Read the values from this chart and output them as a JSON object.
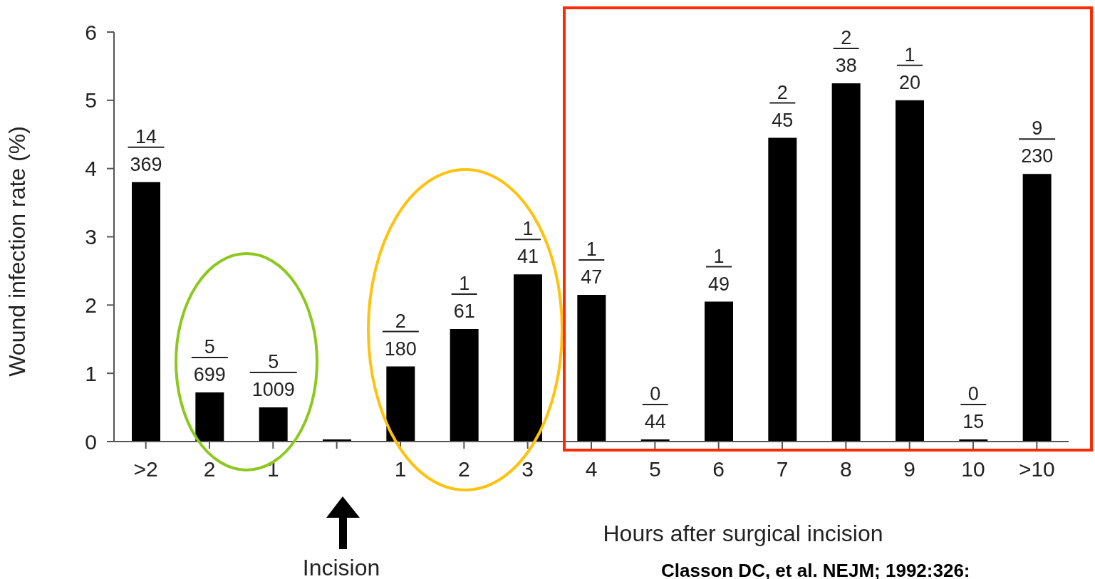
{
  "chart_data": {
    "type": "bar",
    "xlabel": "Hours after surgical incision",
    "ylabel": "Wound infection rate (%)",
    "categories": [
      ">2",
      "2",
      "1",
      null,
      "1",
      "2",
      "3",
      "4",
      "5",
      "6",
      "7",
      "8",
      "9",
      "10",
      ">10"
    ],
    "values": [
      3.8,
      0.72,
      0.5,
      0,
      1.1,
      1.65,
      2.45,
      2.15,
      0,
      2.05,
      4.45,
      5.25,
      5.0,
      0,
      3.92
    ],
    "color": "#000000",
    "ylim": [
      0,
      6
    ],
    "yticks": [
      0,
      1,
      2,
      3,
      4,
      5,
      6
    ],
    "grid": false,
    "legend": false,
    "annotations": [
      "Incision",
      "Classon DC, et al. NEJM; 1992:326:",
      {
        "text": "14\n369",
        "x": ">2",
        "y": 3.8
      },
      {
        "text": "5\n699",
        "x": "2",
        "y": 0.72
      },
      {
        "text": "5\n1009",
        "x": "1",
        "y": 0.5
      },
      "2\n180",
      "1\n61",
      {
        "text": "1\n41",
        "x": "3",
        "y": 2.45
      },
      {
        "text": "1\n47",
        "x": "4",
        "y": 2.15
      },
      {
        "text": "0\n44",
        "x": "5",
        "y": 0
      },
      {
        "text": "1\n49",
        "x": "6",
        "y": 2.05
      },
      {
        "text": "2\n45",
        "x": "7",
        "y": 4.45
      },
      {
        "text": "2\n38",
        "x": "8",
        "y": 5.25
      },
      {
        "text": "1\n20",
        "x": "9",
        "y": 5.0
      },
      {
        "text": "0\n15",
        "x": "10",
        "y": 0
      },
      {
        "text": "9\n230",
        "x": ">10",
        "y": 3.92
      }
    ]
  }
}
